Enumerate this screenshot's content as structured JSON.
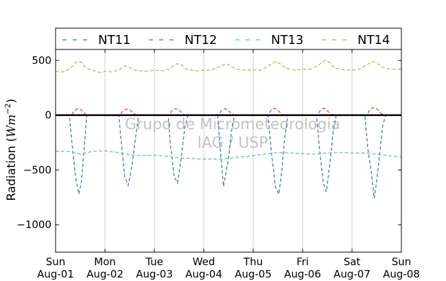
{
  "chart_data": {
    "type": "line",
    "ylabel": "Radiation (Wm^-2)",
    "ylabel_parts": {
      "prefix": "Radiation (",
      "unit_w": "W",
      "unit_m": "m",
      "unit_exp": "−2",
      "suffix": ")"
    },
    "ylim": [
      -1250,
      600
    ],
    "yticks": [
      500,
      0,
      -500,
      -1000
    ],
    "ytick_labels": [
      "500",
      "0",
      "−500",
      "−1000"
    ],
    "xlim": [
      0,
      7
    ],
    "xticks": [
      0,
      1,
      2,
      3,
      4,
      5,
      6,
      7
    ],
    "xtick_labels": [
      [
        "Sun",
        "Aug-01"
      ],
      [
        "Mon",
        "Aug-02"
      ],
      [
        "Tue",
        "Aug-03"
      ],
      [
        "Wed",
        "Aug-04"
      ],
      [
        "Thu",
        "Aug-05"
      ],
      [
        "Fri",
        "Aug-06"
      ],
      [
        "Sat",
        "Aug-07"
      ],
      [
        "Sun",
        "Aug-08"
      ]
    ],
    "grid": "vertical",
    "legend_position": "top",
    "watermark": [
      "Grupo de Micrometeorologia",
      "IAG / USP"
    ],
    "series": [
      {
        "name": "NT11",
        "color": "#4a84b8",
        "style": "dashed",
        "points": [
          [
            0.0,
            0
          ],
          [
            0.28,
            0
          ],
          [
            0.32,
            -200
          ],
          [
            0.4,
            -550
          ],
          [
            0.47,
            -720
          ],
          [
            0.52,
            -620
          ],
          [
            0.58,
            -300
          ],
          [
            0.63,
            0
          ],
          [
            1.0,
            0
          ],
          [
            1.28,
            0
          ],
          [
            1.32,
            -200
          ],
          [
            1.4,
            -560
          ],
          [
            1.47,
            -640
          ],
          [
            1.55,
            -450
          ],
          [
            1.62,
            -200
          ],
          [
            1.68,
            0
          ],
          [
            2.0,
            0
          ],
          [
            2.28,
            0
          ],
          [
            2.32,
            -250
          ],
          [
            2.4,
            -560
          ],
          [
            2.47,
            -620
          ],
          [
            2.54,
            -400
          ],
          [
            2.62,
            -100
          ],
          [
            2.68,
            0
          ],
          [
            3.0,
            0
          ],
          [
            3.28,
            0
          ],
          [
            3.33,
            -300
          ],
          [
            3.4,
            -650
          ],
          [
            3.45,
            -520
          ],
          [
            3.5,
            -400
          ],
          [
            3.56,
            -150
          ],
          [
            3.62,
            0
          ],
          [
            4.0,
            0
          ],
          [
            4.3,
            0
          ],
          [
            4.36,
            -300
          ],
          [
            4.45,
            -650
          ],
          [
            4.52,
            -720
          ],
          [
            4.58,
            -500
          ],
          [
            4.64,
            -200
          ],
          [
            4.7,
            0
          ],
          [
            5.0,
            0
          ],
          [
            5.28,
            0
          ],
          [
            5.34,
            -300
          ],
          [
            5.42,
            -620
          ],
          [
            5.48,
            -700
          ],
          [
            5.55,
            -450
          ],
          [
            5.62,
            -150
          ],
          [
            5.68,
            0
          ],
          [
            6.0,
            0
          ],
          [
            6.26,
            0
          ],
          [
            6.32,
            -300
          ],
          [
            6.4,
            -550
          ],
          [
            6.45,
            -760
          ],
          [
            6.5,
            -600
          ],
          [
            6.56,
            -350
          ],
          [
            6.62,
            -100
          ],
          [
            6.68,
            0
          ],
          [
            7.0,
            0
          ]
        ]
      },
      {
        "name": "NT12",
        "color": "#d05a4e",
        "style": "dashed",
        "points": [
          [
            0.0,
            0
          ],
          [
            0.32,
            0
          ],
          [
            0.38,
            40
          ],
          [
            0.45,
            60
          ],
          [
            0.52,
            50
          ],
          [
            0.58,
            20
          ],
          [
            0.63,
            0
          ],
          [
            1.0,
            0
          ],
          [
            1.3,
            0
          ],
          [
            1.36,
            40
          ],
          [
            1.43,
            55
          ],
          [
            1.5,
            50
          ],
          [
            1.58,
            15
          ],
          [
            1.64,
            0
          ],
          [
            2.0,
            0
          ],
          [
            2.3,
            0
          ],
          [
            2.36,
            45
          ],
          [
            2.43,
            60
          ],
          [
            2.5,
            45
          ],
          [
            2.58,
            10
          ],
          [
            2.64,
            0
          ],
          [
            3.0,
            0
          ],
          [
            3.3,
            0
          ],
          [
            3.36,
            45
          ],
          [
            3.43,
            60
          ],
          [
            3.5,
            40
          ],
          [
            3.58,
            10
          ],
          [
            3.64,
            0
          ],
          [
            4.0,
            0
          ],
          [
            4.3,
            0
          ],
          [
            4.36,
            45
          ],
          [
            4.43,
            65
          ],
          [
            4.5,
            45
          ],
          [
            4.58,
            10
          ],
          [
            4.64,
            0
          ],
          [
            5.0,
            0
          ],
          [
            5.3,
            0
          ],
          [
            5.36,
            45
          ],
          [
            5.43,
            65
          ],
          [
            5.5,
            40
          ],
          [
            5.58,
            10
          ],
          [
            5.64,
            0
          ],
          [
            6.0,
            0
          ],
          [
            6.3,
            0
          ],
          [
            6.36,
            50
          ],
          [
            6.43,
            70
          ],
          [
            6.5,
            60
          ],
          [
            6.58,
            20
          ],
          [
            6.64,
            0
          ],
          [
            7.0,
            0
          ]
        ]
      },
      {
        "name": "NT13",
        "color": "#5ccfb0",
        "style": "dashed",
        "points": [
          [
            0.0,
            -330
          ],
          [
            0.25,
            -330
          ],
          [
            0.5,
            -355
          ],
          [
            0.75,
            -330
          ],
          [
            1.0,
            -325
          ],
          [
            1.25,
            -340
          ],
          [
            1.5,
            -360
          ],
          [
            1.75,
            -370
          ],
          [
            2.0,
            -365
          ],
          [
            2.25,
            -375
          ],
          [
            2.5,
            -390
          ],
          [
            2.75,
            -395
          ],
          [
            3.0,
            -400
          ],
          [
            3.25,
            -400
          ],
          [
            3.5,
            -395
          ],
          [
            3.75,
            -380
          ],
          [
            4.0,
            -370
          ],
          [
            4.25,
            -355
          ],
          [
            4.5,
            -340
          ],
          [
            4.75,
            -345
          ],
          [
            5.0,
            -350
          ],
          [
            5.25,
            -355
          ],
          [
            5.5,
            -345
          ],
          [
            5.75,
            -340
          ],
          [
            6.0,
            -345
          ],
          [
            6.25,
            -345
          ],
          [
            6.5,
            -355
          ],
          [
            6.75,
            -370
          ],
          [
            7.0,
            -380
          ]
        ]
      },
      {
        "name": "NT14",
        "color": "#b8bc5c",
        "style": "dashed",
        "points": [
          [
            0.0,
            400
          ],
          [
            0.15,
            395
          ],
          [
            0.28,
            420
          ],
          [
            0.4,
            480
          ],
          [
            0.5,
            490
          ],
          [
            0.62,
            430
          ],
          [
            0.75,
            410
          ],
          [
            0.9,
            390
          ],
          [
            1.0,
            400
          ],
          [
            1.15,
            395
          ],
          [
            1.3,
            420
          ],
          [
            1.42,
            450
          ],
          [
            1.52,
            430
          ],
          [
            1.62,
            410
          ],
          [
            1.8,
            400
          ],
          [
            2.0,
            410
          ],
          [
            2.15,
            405
          ],
          [
            2.3,
            420
          ],
          [
            2.45,
            470
          ],
          [
            2.55,
            460
          ],
          [
            2.65,
            420
          ],
          [
            2.85,
            405
          ],
          [
            3.0,
            410
          ],
          [
            3.15,
            410
          ],
          [
            3.3,
            440
          ],
          [
            3.45,
            470
          ],
          [
            3.55,
            450
          ],
          [
            3.65,
            420
          ],
          [
            3.85,
            410
          ],
          [
            4.0,
            415
          ],
          [
            4.15,
            410
          ],
          [
            4.3,
            450
          ],
          [
            4.45,
            490
          ],
          [
            4.55,
            470
          ],
          [
            4.65,
            430
          ],
          [
            4.85,
            410
          ],
          [
            5.0,
            420
          ],
          [
            5.15,
            420
          ],
          [
            5.3,
            450
          ],
          [
            5.45,
            500
          ],
          [
            5.55,
            480
          ],
          [
            5.65,
            430
          ],
          [
            5.85,
            415
          ],
          [
            6.0,
            410
          ],
          [
            6.15,
            420
          ],
          [
            6.3,
            460
          ],
          [
            6.42,
            490
          ],
          [
            6.52,
            470
          ],
          [
            6.65,
            430
          ],
          [
            6.85,
            420
          ],
          [
            7.0,
            420
          ]
        ]
      }
    ]
  }
}
